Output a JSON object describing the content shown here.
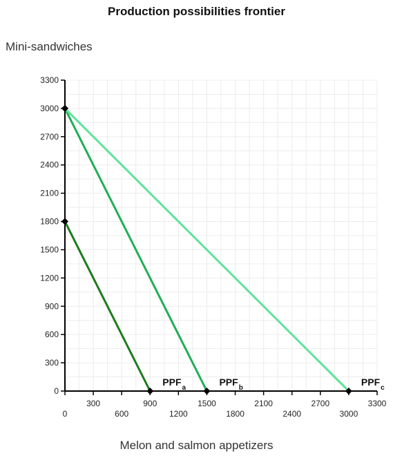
{
  "chart_data": {
    "type": "line",
    "title": "Production possibilities frontier",
    "xlabel": "Melon and salmon appetizers",
    "ylabel": "Mini-sandwiches",
    "xlim": [
      0,
      3300
    ],
    "ylim": [
      0,
      3300
    ],
    "x_ticks": [
      0,
      300,
      600,
      900,
      1200,
      1500,
      1800,
      2100,
      2400,
      2700,
      3000,
      3300
    ],
    "y_ticks": [
      0,
      300,
      600,
      900,
      1200,
      1500,
      1800,
      2100,
      2400,
      2700,
      3000,
      3300
    ],
    "grid": true,
    "series": [
      {
        "name": "PPF",
        "subscript": "a",
        "color": "#1e7a1e",
        "points": [
          [
            0,
            1800
          ],
          [
            900,
            0
          ]
        ]
      },
      {
        "name": "PPF",
        "subscript": "b",
        "color": "#1fae55",
        "points": [
          [
            0,
            3000
          ],
          [
            1500,
            0
          ]
        ]
      },
      {
        "name": "PPF",
        "subscript": "c",
        "color": "#5ee39a",
        "points": [
          [
            0,
            3000
          ],
          [
            3000,
            0
          ]
        ]
      }
    ],
    "marker_color": "#000000"
  }
}
